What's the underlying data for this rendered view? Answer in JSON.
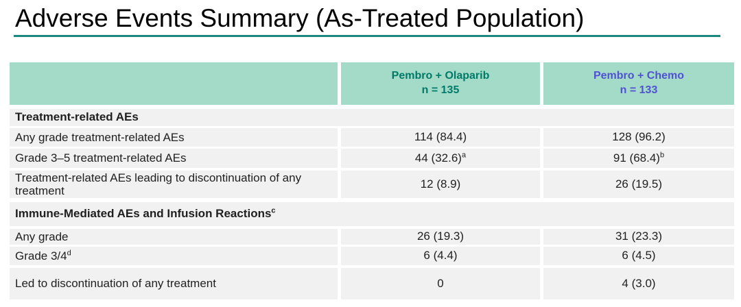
{
  "title": "Adverse Events Summary (As-Treated Population)",
  "colors": {
    "title_underline_teal": "#18877d",
    "header_background_mint": "#a3dbc8",
    "olaparib_header_text": "#007a68",
    "chemo_header_text": "#5151d3",
    "row_background_gray": "#f1f1f1"
  },
  "table": {
    "columns": [
      {
        "name": "Pembro + Olaparib",
        "n": "n = 135"
      },
      {
        "name": "Pembro + Chemo",
        "n": "n = 133"
      }
    ],
    "sections": [
      {
        "title": "Treatment-related AEs",
        "sup": ""
      },
      {
        "title": "Immune-Mediated AEs and Infusion Reactions",
        "sup": "c"
      }
    ],
    "rows": [
      {
        "label": "Any grade treatment-related AEs",
        "label_sup": "",
        "olaparib": "114 (84.4)",
        "olaparib_sup": "",
        "chemo": "128 (96.2)",
        "chemo_sup": ""
      },
      {
        "label": "Grade 3–5 treatment-related AEs",
        "label_sup": "",
        "olaparib": "44 (32.6)",
        "olaparib_sup": "a",
        "chemo": "91 (68.4)",
        "chemo_sup": "b"
      },
      {
        "label": "Treatment-related AEs leading to discontinuation of any treatment",
        "label_sup": "",
        "olaparib": "12 (8.9)",
        "olaparib_sup": "",
        "chemo": "26 (19.5)",
        "chemo_sup": ""
      },
      {
        "label": "Any grade",
        "label_sup": "",
        "olaparib": "26 (19.3)",
        "olaparib_sup": "",
        "chemo": "31 (23.3)",
        "chemo_sup": ""
      },
      {
        "label": "Grade 3/4",
        "label_sup": "d",
        "olaparib": "6 (4.4)",
        "olaparib_sup": "",
        "chemo": "6 (4.5)",
        "chemo_sup": ""
      },
      {
        "label": "Led to discontinuation of any treatment",
        "label_sup": "",
        "olaparib": "0",
        "olaparib_sup": "",
        "chemo": "4 (3.0)",
        "chemo_sup": ""
      }
    ]
  }
}
